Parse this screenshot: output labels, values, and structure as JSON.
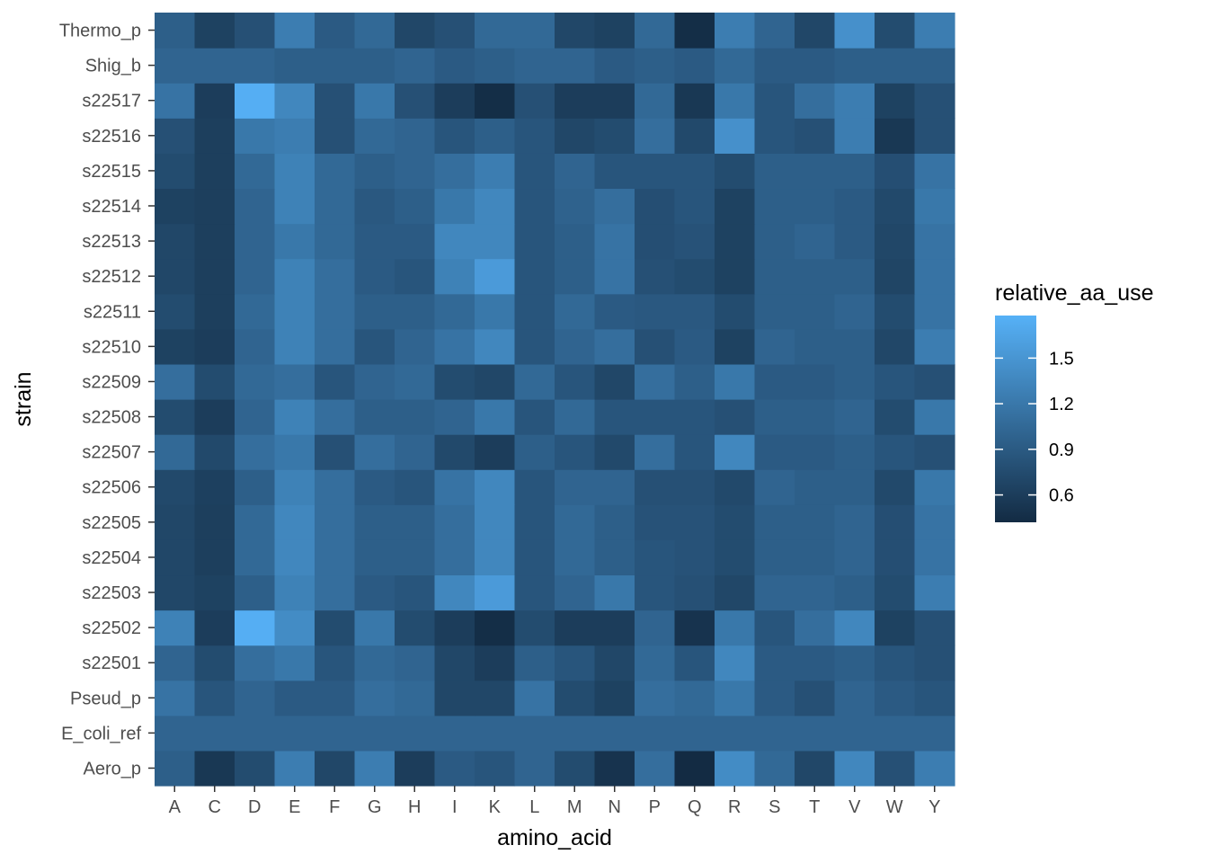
{
  "chart_data": {
    "type": "heatmap",
    "xlabel": "amino_acid",
    "ylabel": "strain",
    "legend_title": "relative_aa_use",
    "x": [
      "A",
      "C",
      "D",
      "E",
      "F",
      "G",
      "H",
      "I",
      "K",
      "L",
      "M",
      "N",
      "P",
      "Q",
      "R",
      "S",
      "T",
      "V",
      "W",
      "Y"
    ],
    "y": [
      "Aero_p",
      "E_coli_ref",
      "Pseud_p",
      "s22501",
      "s22502",
      "s22503",
      "s22504",
      "s22505",
      "s22506",
      "s22507",
      "s22508",
      "s22509",
      "s22510",
      "s22511",
      "s22512",
      "s22513",
      "s22514",
      "s22515",
      "s22516",
      "s22517",
      "Shig_b",
      "Thermo_p"
    ],
    "values": [
      [
        0.95,
        0.55,
        0.75,
        1.25,
        0.7,
        1.25,
        0.6,
        0.9,
        0.85,
        1.0,
        0.75,
        0.5,
        1.1,
        0.42,
        1.4,
        1.05,
        0.7,
        1.35,
        0.8,
        1.25
      ],
      [
        1.0,
        1.0,
        1.0,
        1.0,
        1.0,
        1.0,
        1.0,
        1.0,
        1.0,
        1.0,
        1.0,
        1.0,
        1.0,
        1.0,
        1.0,
        1.0,
        1.0,
        1.0,
        1.0,
        1.0
      ],
      [
        1.15,
        0.85,
        1.0,
        0.9,
        0.9,
        1.1,
        1.05,
        0.7,
        0.7,
        1.15,
        0.75,
        0.65,
        1.1,
        1.05,
        1.2,
        0.9,
        0.8,
        1.0,
        0.9,
        0.85
      ],
      [
        1.0,
        0.75,
        1.1,
        1.2,
        0.85,
        1.05,
        1.0,
        0.7,
        0.6,
        0.95,
        0.85,
        0.7,
        1.05,
        0.85,
        1.35,
        0.9,
        0.9,
        0.95,
        0.85,
        0.8
      ],
      [
        1.3,
        0.6,
        1.75,
        1.4,
        0.75,
        1.2,
        0.75,
        0.6,
        0.45,
        0.75,
        0.6,
        0.6,
        1.0,
        0.5,
        1.2,
        0.85,
        1.1,
        1.35,
        0.65,
        0.8
      ],
      [
        0.7,
        0.65,
        0.95,
        1.3,
        1.1,
        0.9,
        0.85,
        1.35,
        1.55,
        0.85,
        1.0,
        1.2,
        0.85,
        0.8,
        0.7,
        1.0,
        1.0,
        0.95,
        0.75,
        1.25
      ],
      [
        0.7,
        0.62,
        1.05,
        1.35,
        1.1,
        0.95,
        0.95,
        1.1,
        1.35,
        0.85,
        1.05,
        0.95,
        0.85,
        0.82,
        0.75,
        0.95,
        0.95,
        1.0,
        0.78,
        1.15
      ],
      [
        0.7,
        0.62,
        1.05,
        1.35,
        1.1,
        0.95,
        0.95,
        1.1,
        1.35,
        0.85,
        1.05,
        0.95,
        0.82,
        0.82,
        0.75,
        0.95,
        0.95,
        1.0,
        0.78,
        1.15
      ],
      [
        0.72,
        0.63,
        0.95,
        1.3,
        1.1,
        0.9,
        0.85,
        1.15,
        1.35,
        0.85,
        1.0,
        1.0,
        0.8,
        0.8,
        0.72,
        1.0,
        0.95,
        0.95,
        0.72,
        1.2
      ],
      [
        1.05,
        0.72,
        1.1,
        1.2,
        0.8,
        1.1,
        1.0,
        0.72,
        0.6,
        0.95,
        0.85,
        0.72,
        1.1,
        0.85,
        1.35,
        0.9,
        0.9,
        0.95,
        0.85,
        0.8
      ],
      [
        0.75,
        0.6,
        1.0,
        1.3,
        1.1,
        0.95,
        0.95,
        1.0,
        1.2,
        0.85,
        1.05,
        0.85,
        0.85,
        0.85,
        0.8,
        0.95,
        0.95,
        1.0,
        0.75,
        1.2
      ],
      [
        1.1,
        0.75,
        1.05,
        1.1,
        0.85,
        1.0,
        1.05,
        0.75,
        0.7,
        1.05,
        0.85,
        0.7,
        1.1,
        0.95,
        1.2,
        0.9,
        0.9,
        0.95,
        0.85,
        0.8
      ],
      [
        0.65,
        0.6,
        1.0,
        1.3,
        1.1,
        0.85,
        1.0,
        1.15,
        1.35,
        0.85,
        1.0,
        1.1,
        0.8,
        0.9,
        0.65,
        1.0,
        0.95,
        0.95,
        0.7,
        1.25
      ],
      [
        0.75,
        0.62,
        1.05,
        1.3,
        1.1,
        0.95,
        0.95,
        1.05,
        1.2,
        0.85,
        1.05,
        0.9,
        0.88,
        0.88,
        0.75,
        0.95,
        0.95,
        1.0,
        0.75,
        1.15
      ],
      [
        0.7,
        0.62,
        1.0,
        1.3,
        1.1,
        0.9,
        0.85,
        1.3,
        1.55,
        0.85,
        0.95,
        1.15,
        0.8,
        0.75,
        0.65,
        0.95,
        0.95,
        0.95,
        0.68,
        1.15
      ],
      [
        0.7,
        0.62,
        1.0,
        1.2,
        1.05,
        0.9,
        0.9,
        1.35,
        1.35,
        0.85,
        0.95,
        1.15,
        0.78,
        0.82,
        0.65,
        0.95,
        1.0,
        0.9,
        0.7,
        1.15
      ],
      [
        0.65,
        0.62,
        1.0,
        1.3,
        1.05,
        0.88,
        0.95,
        1.2,
        1.35,
        0.85,
        0.98,
        1.1,
        0.78,
        0.85,
        0.65,
        0.95,
        0.95,
        0.9,
        0.72,
        1.2
      ],
      [
        0.75,
        0.62,
        1.05,
        1.3,
        1.05,
        0.95,
        1.0,
        1.1,
        1.25,
        0.85,
        1.0,
        0.85,
        0.85,
        0.85,
        0.75,
        0.95,
        0.95,
        0.95,
        0.78,
        1.15
      ],
      [
        0.8,
        0.62,
        1.2,
        1.25,
        0.8,
        1.05,
        1.0,
        0.85,
        0.95,
        0.85,
        0.7,
        0.75,
        1.1,
        0.72,
        1.45,
        0.85,
        0.8,
        1.25,
        0.55,
        0.8
      ],
      [
        1.15,
        0.6,
        1.75,
        1.35,
        0.8,
        1.2,
        0.8,
        0.6,
        0.45,
        0.8,
        0.6,
        0.6,
        1.05,
        0.55,
        1.2,
        0.85,
        1.1,
        1.25,
        0.65,
        0.8
      ],
      [
        1.0,
        1.0,
        1.0,
        0.95,
        0.95,
        0.95,
        1.0,
        0.9,
        0.95,
        1.0,
        1.0,
        0.9,
        0.95,
        0.9,
        1.05,
        0.9,
        0.9,
        0.95,
        0.95,
        0.95
      ],
      [
        0.95,
        0.65,
        0.8,
        1.25,
        0.9,
        1.05,
        0.7,
        0.8,
        1.05,
        1.05,
        0.7,
        0.65,
        1.05,
        0.45,
        1.25,
        1.0,
        0.7,
        1.45,
        0.75,
        1.25
      ]
    ],
    "legend_ticks": [
      0.6,
      0.9,
      1.2,
      1.5
    ],
    "legend_tick_labels": [
      "0.6",
      "0.9",
      "1.2",
      "1.5"
    ],
    "color_range": [
      0.42,
      1.78
    ],
    "colors": {
      "low": "#132B43",
      "high": "#56B1F7",
      "grid": "#EBEBEB",
      "tick": "#333333",
      "tick_label": "#4D4D4D"
    },
    "grid": false,
    "legend_position": "right"
  }
}
